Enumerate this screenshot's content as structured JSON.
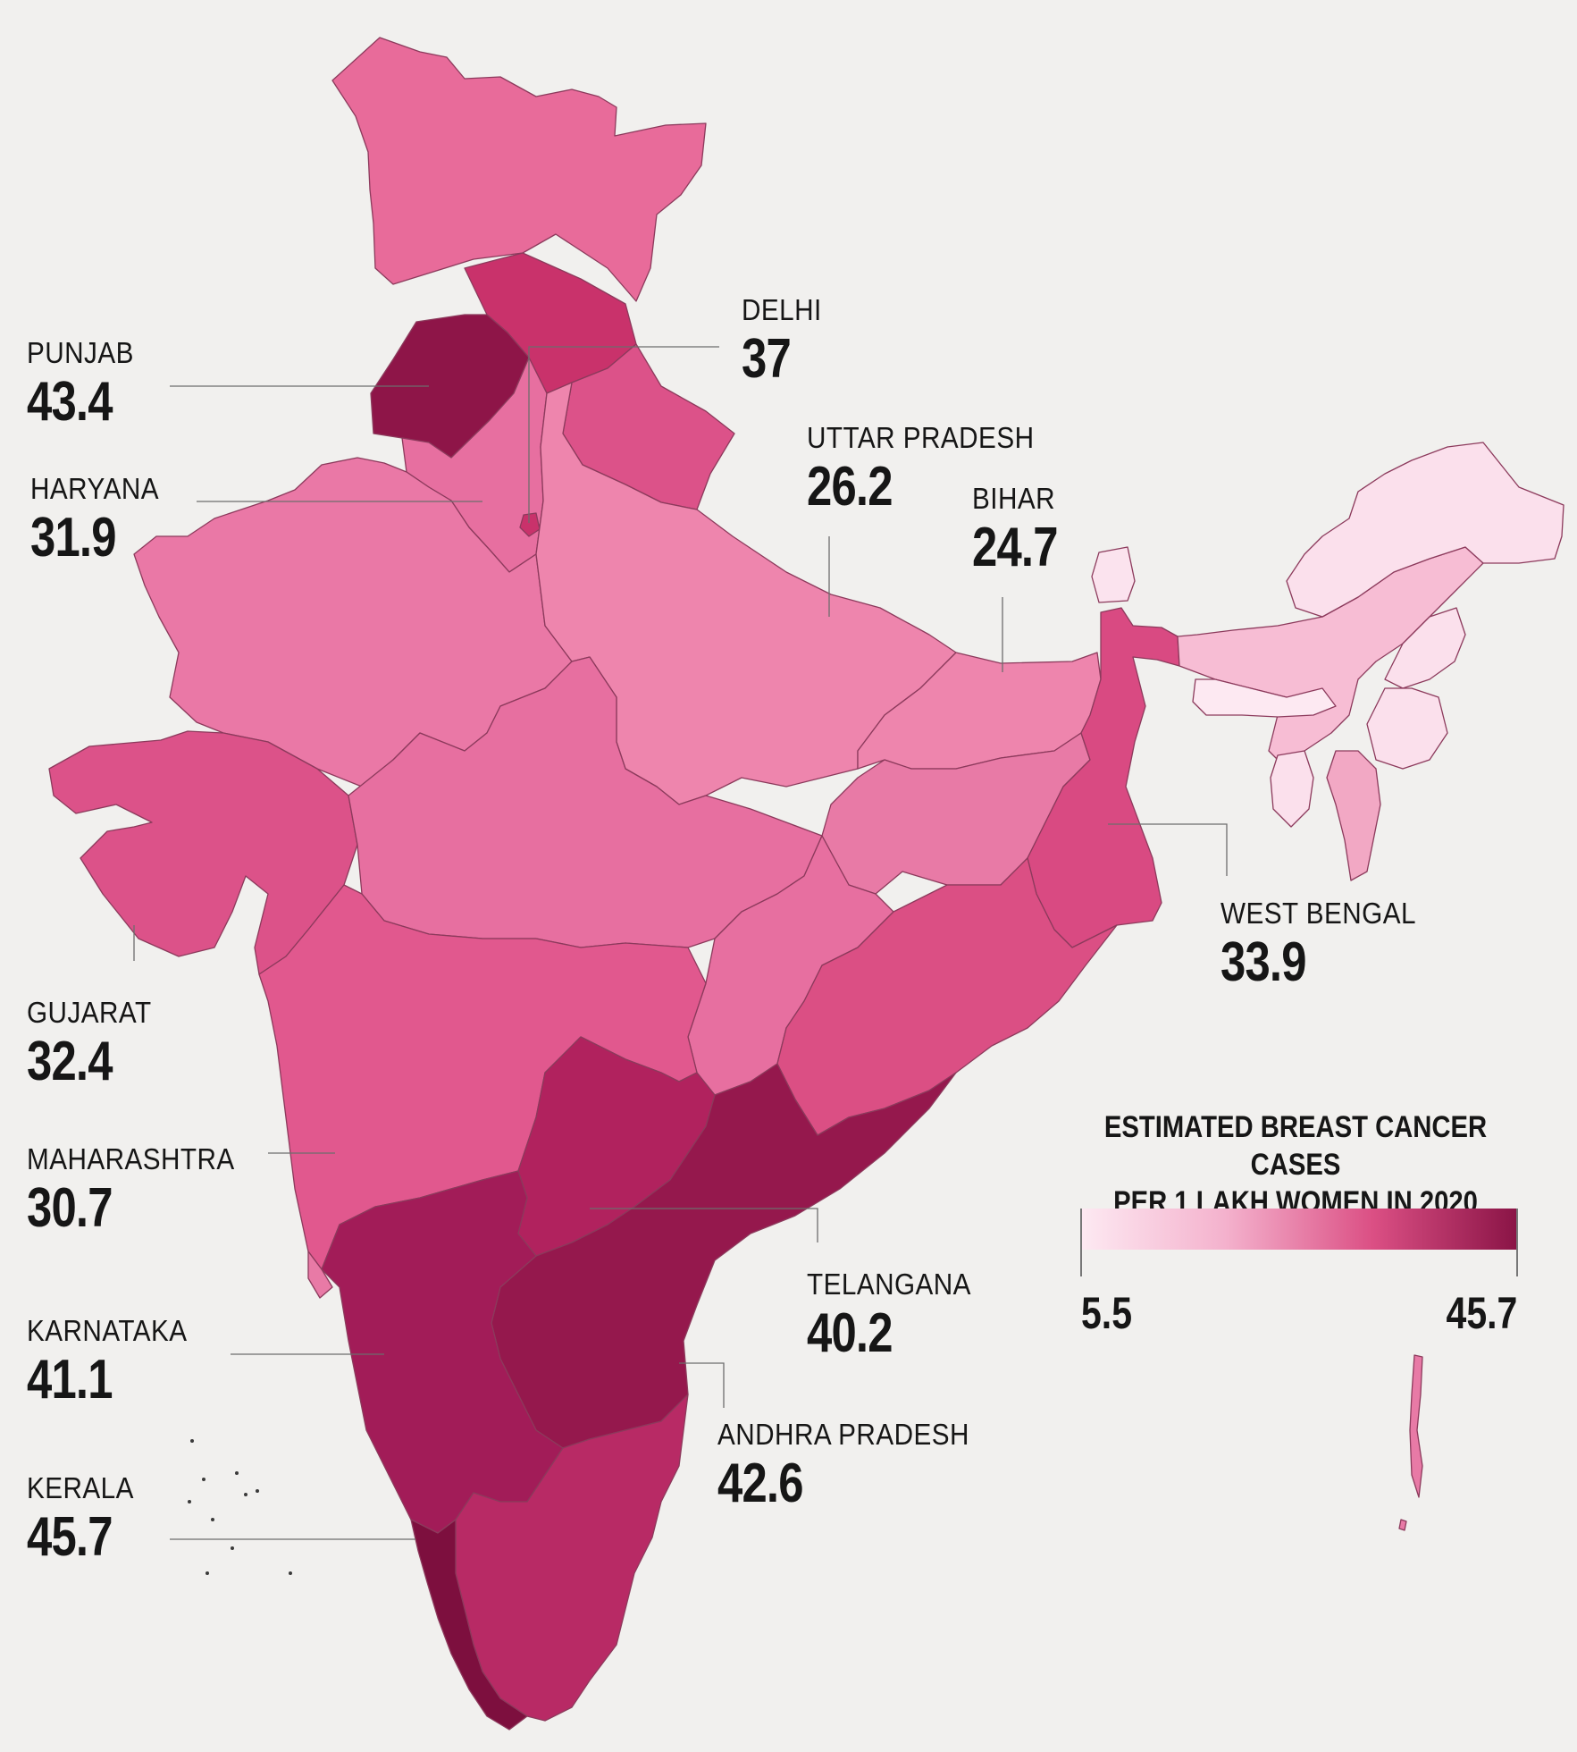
{
  "map": {
    "title_line1": "ESTIMATED BREAST CANCER CASES",
    "title_line2": "PER 1 LAKH WOMEN IN 2020",
    "legend_min": "5.5",
    "legend_max": "45.7",
    "scale_colors": [
      "#fde9f2",
      "#f4b2cd",
      "#db4f84",
      "#8a1446"
    ]
  },
  "labels": {
    "punjab": {
      "name": "PUNJAB",
      "value": "43.4"
    },
    "haryana": {
      "name": "HARYANA",
      "value": "31.9"
    },
    "gujarat": {
      "name": "GUJARAT",
      "value": "32.4"
    },
    "maharashtra": {
      "name": "MAHARASHTRA",
      "value": "30.7"
    },
    "karnataka": {
      "name": "KARNATAKA",
      "value": "41.1"
    },
    "kerala": {
      "name": "KERALA",
      "value": "45.7"
    },
    "delhi": {
      "name": "DELHI",
      "value": "37"
    },
    "uttar_pradesh": {
      "name": "UTTAR PRADESH",
      "value": "26.2"
    },
    "bihar": {
      "name": "BIHAR",
      "value": "24.7"
    },
    "west_bengal": {
      "name": "WEST BENGAL",
      "value": "33.9"
    },
    "telangana": {
      "name": "TELANGANA",
      "value": "40.2"
    },
    "andhra_pradesh": {
      "name": "ANDHRA PRADESH",
      "value": "42.6"
    }
  }
}
